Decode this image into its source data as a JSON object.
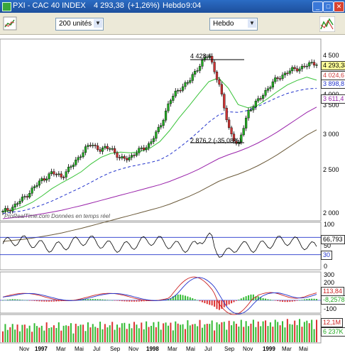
{
  "window": {
    "symbol": "PXI - CAC 40 INDEX",
    "last_price": "4 293,38",
    "change": "(+1,26%)",
    "period": "Hebdo",
    "time": "9:04"
  },
  "toolbar": {
    "units_select": "200 unités",
    "period_select": "Hebdo"
  },
  "price_panel": {
    "y_ticks": [
      "4 500",
      "4 000",
      "3 500",
      "3 000",
      "2 500",
      "2 000"
    ],
    "high_label": "4 428,6",
    "low_label": "2 876,2 (-35,08%)",
    "watermark": "ProRealTime.com  Données en temps réel",
    "tags": [
      {
        "label": "4 293,38",
        "color": "#000000"
      },
      {
        "label": "4 024,6",
        "color": "#d04040"
      },
      {
        "label": "3 898,8",
        "color": "#2233cc"
      },
      {
        "label": "3 611,4",
        "color": "#9922aa"
      }
    ]
  },
  "osc_panel": {
    "y_ticks": [
      "100",
      "50",
      "0"
    ],
    "tags": [
      {
        "label": "66,793",
        "color": "#000000"
      },
      {
        "label": "30",
        "color": "#2233cc"
      }
    ]
  },
  "macd_panel": {
    "y_ticks": [
      "300",
      "200",
      "100",
      "0",
      "-100"
    ],
    "tags": [
      {
        "label": "113,84",
        "color": "#cc2222"
      },
      {
        "label": "-8,2578",
        "color": "#22aa22"
      }
    ]
  },
  "volume_panel": {
    "tags": [
      {
        "label": "12,1M",
        "color": "#cc2222"
      },
      {
        "label": "6 237K",
        "color": "#22aa22"
      }
    ]
  },
  "x_axis": [
    {
      "label": "Nov",
      "year": false
    },
    {
      "label": "1997",
      "year": true
    },
    {
      "label": "Mar",
      "year": false
    },
    {
      "label": "Mai",
      "year": false
    },
    {
      "label": "Jul",
      "year": false
    },
    {
      "label": "Sep",
      "year": false
    },
    {
      "label": "Nov",
      "year": false
    },
    {
      "label": "1998",
      "year": true
    },
    {
      "label": "Mar",
      "year": false
    },
    {
      "label": "Mai",
      "year": false
    },
    {
      "label": "Jul",
      "year": false
    },
    {
      "label": "Sep",
      "year": false
    },
    {
      "label": "Nov",
      "year": false
    },
    {
      "label": "1999",
      "year": true
    },
    {
      "label": "Mar",
      "year": false
    },
    {
      "label": "Mai",
      "year": false
    }
  ],
  "chart_data": {
    "type": "line",
    "title": "PXI - CAC 40 INDEX",
    "period": "Hebdo",
    "x": [
      "1996-10",
      "1996-11",
      "1996-12",
      "1997-01",
      "1997-02",
      "1997-03",
      "1997-04",
      "1997-05",
      "1997-06",
      "1997-07",
      "1997-08",
      "1997-09",
      "1997-10",
      "1997-11",
      "1997-12",
      "1998-01",
      "1998-02",
      "1998-03",
      "1998-04",
      "1998-05",
      "1998-06",
      "1998-07",
      "1998-08",
      "1998-09",
      "1998-10",
      "1998-11",
      "1998-12",
      "1999-01",
      "1999-02",
      "1999-03",
      "1999-04",
      "1999-05",
      "1999-06"
    ],
    "series": [
      {
        "values": [
          2000,
          2080,
          2200,
          2350,
          2500,
          2600,
          2550,
          2700,
          2900,
          3050,
          2950,
          3000,
          2800,
          2850,
          2950,
          3050,
          3300,
          3700,
          3900,
          4000,
          4250,
          4420,
          4000,
          3300,
          3000,
          3550,
          3700,
          3900,
          4050,
          4150,
          4200,
          4250,
          4293.38
        ]
      },
      {
        "values": [
          2000,
          2030,
          2080,
          2150,
          2250,
          2360,
          2450,
          2530,
          2620,
          2740,
          2840,
          2900,
          2920,
          2910,
          2930,
          2980,
          3080,
          3250,
          3450,
          3630,
          3820,
          4000,
          4060,
          3900,
          3650,
          3600,
          3640,
          3740,
          3850,
          3950,
          4020,
          4070,
          4024.6
        ]
      },
      {
        "values": [
          1980,
          2000,
          2020,
          2060,
          2110,
          2170,
          2240,
          2310,
          2380,
          2460,
          2540,
          2610,
          2660,
          2700,
          2730,
          2760,
          2800,
          2880,
          2990,
          3110,
          3240,
          3380,
          3490,
          3540,
          3530,
          3560,
          3620,
          3690,
          3760,
          3820,
          3860,
          3890,
          3898.8
        ]
      },
      {
        "values": [
          1900,
          1915,
          1930,
          1950,
          1975,
          2000,
          2030,
          2065,
          2100,
          2140,
          2180,
          2220,
          2260,
          2300,
          2340,
          2380,
          2420,
          2470,
          2530,
          2590,
          2660,
          2740,
          2820,
          2880,
          2930,
          2990,
          3060,
          3140,
          3230,
          3330,
          3430,
          3530,
          3611.4
        ]
      }
    ],
    "ylim": [
      1900,
      4600
    ],
    "annotations": [
      "4 428,6",
      "2 876,2 (-35,08%)"
    ],
    "grid": false
  }
}
